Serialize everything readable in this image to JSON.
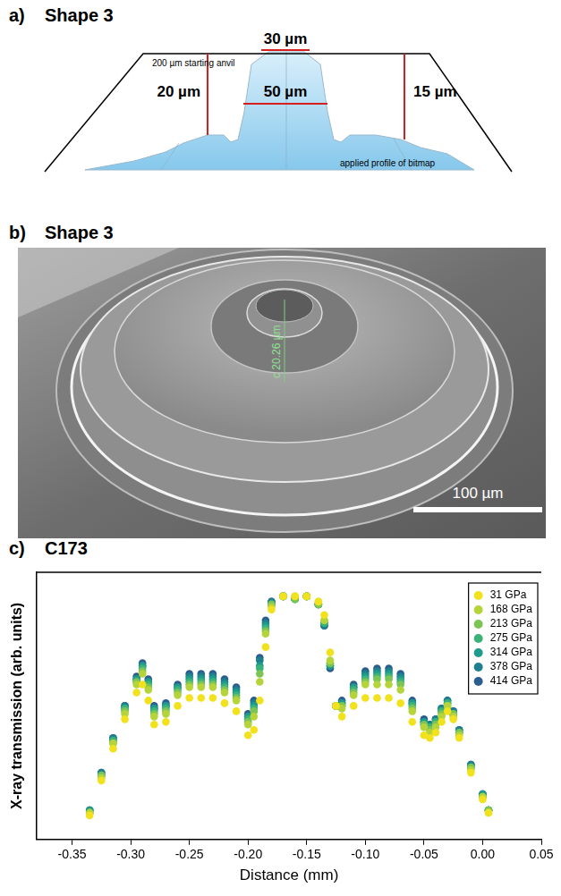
{
  "panel_a": {
    "letter": "a)",
    "title": "Shape 3",
    "labels": {
      "top_width": "30 µm",
      "pillar_width": "50 µm",
      "left_height": "20 µm",
      "right_height": "15 µm",
      "anvil": "200 µm starting anvil",
      "profile": "applied profile of bitmap"
    }
  },
  "panel_b": {
    "letter": "b)",
    "title": "Shape 3",
    "measurement": "c 20.26 µm",
    "scale_bar": "100 µm"
  },
  "panel_c": {
    "letter": "c)"
  },
  "chart_data": {
    "type": "scatter",
    "title": "C173",
    "x_label": "Distance (mm)",
    "y_label": "X-ray transmission (arb. units)",
    "x": [
      -0.335,
      -0.325,
      -0.315,
      -0.305,
      -0.295,
      -0.29,
      -0.285,
      -0.28,
      -0.27,
      -0.26,
      -0.25,
      -0.24,
      -0.23,
      -0.22,
      -0.21,
      -0.2,
      -0.195,
      -0.19,
      -0.185,
      -0.18,
      -0.17,
      -0.16,
      -0.15,
      -0.14,
      -0.135,
      -0.13,
      -0.125,
      -0.12,
      -0.11,
      -0.1,
      -0.09,
      -0.08,
      -0.07,
      -0.06,
      -0.05,
      -0.045,
      -0.04,
      -0.035,
      -0.03,
      -0.025,
      -0.02,
      -0.01,
      0.0,
      0.005
    ],
    "series": [
      {
        "name": "31 GPa",
        "color": "#f2e11d",
        "values": [
          0.09,
          0.22,
          0.34,
          0.45,
          0.55,
          0.58,
          0.52,
          0.43,
          0.44,
          0.5,
          0.53,
          0.53,
          0.53,
          0.51,
          0.48,
          0.39,
          0.41,
          0.52,
          0.72,
          0.86,
          0.91,
          0.91,
          0.91,
          0.89,
          0.84,
          0.7,
          0.5,
          0.46,
          0.5,
          0.53,
          0.53,
          0.53,
          0.51,
          0.44,
          0.39,
          0.38,
          0.4,
          0.44,
          0.48,
          0.45,
          0.38,
          0.25,
          0.15,
          0.1
        ]
      },
      {
        "name": "168 GPa",
        "color": "#b5d43b",
        "values": [
          0.1,
          0.23,
          0.36,
          0.47,
          0.58,
          0.62,
          0.56,
          0.46,
          0.47,
          0.54,
          0.57,
          0.57,
          0.57,
          0.55,
          0.52,
          0.43,
          0.46,
          0.59,
          0.77,
          0.87,
          0.91,
          0.91,
          0.91,
          0.89,
          0.82,
          0.67,
          0.5,
          0.49,
          0.54,
          0.58,
          0.58,
          0.58,
          0.56,
          0.48,
          0.42,
          0.4,
          0.42,
          0.46,
          0.5,
          0.46,
          0.39,
          0.26,
          0.16,
          0.1
        ]
      },
      {
        "name": "213 GPa",
        "color": "#7cc554",
        "values": [
          0.1,
          0.24,
          0.36,
          0.48,
          0.59,
          0.63,
          0.57,
          0.47,
          0.48,
          0.55,
          0.58,
          0.58,
          0.58,
          0.56,
          0.53,
          0.44,
          0.48,
          0.62,
          0.78,
          0.88,
          0.91,
          0.9,
          0.91,
          0.88,
          0.82,
          0.66,
          0.5,
          0.5,
          0.55,
          0.59,
          0.6,
          0.6,
          0.58,
          0.49,
          0.43,
          0.41,
          0.43,
          0.47,
          0.5,
          0.47,
          0.4,
          0.27,
          0.16,
          0.11
        ]
      },
      {
        "name": "275 GPa",
        "color": "#3bb27a",
        "values": [
          0.1,
          0.24,
          0.37,
          0.49,
          0.59,
          0.64,
          0.58,
          0.48,
          0.49,
          0.56,
          0.59,
          0.59,
          0.59,
          0.57,
          0.54,
          0.45,
          0.49,
          0.64,
          0.79,
          0.88,
          0.91,
          0.9,
          0.91,
          0.88,
          0.81,
          0.66,
          0.5,
          0.5,
          0.56,
          0.6,
          0.61,
          0.61,
          0.59,
          0.5,
          0.43,
          0.42,
          0.44,
          0.48,
          0.51,
          0.47,
          0.4,
          0.27,
          0.16,
          0.11
        ]
      },
      {
        "name": "314 GPa",
        "color": "#1f9b8c",
        "values": [
          0.11,
          0.24,
          0.37,
          0.49,
          0.6,
          0.65,
          0.59,
          0.49,
          0.5,
          0.57,
          0.6,
          0.6,
          0.6,
          0.58,
          0.55,
          0.46,
          0.5,
          0.65,
          0.8,
          0.88,
          0.91,
          0.9,
          0.91,
          0.88,
          0.81,
          0.65,
          0.5,
          0.51,
          0.57,
          0.61,
          0.62,
          0.62,
          0.6,
          0.51,
          0.44,
          0.42,
          0.44,
          0.48,
          0.51,
          0.47,
          0.4,
          0.27,
          0.17,
          0.11
        ]
      },
      {
        "name": "378 GPa",
        "color": "#1e7f8d",
        "values": [
          0.11,
          0.25,
          0.38,
          0.5,
          0.6,
          0.65,
          0.59,
          0.49,
          0.5,
          0.57,
          0.61,
          0.61,
          0.61,
          0.59,
          0.56,
          0.46,
          0.51,
          0.67,
          0.81,
          0.89,
          0.91,
          0.9,
          0.91,
          0.88,
          0.8,
          0.65,
          0.5,
          0.51,
          0.57,
          0.62,
          0.63,
          0.63,
          0.61,
          0.51,
          0.44,
          0.43,
          0.45,
          0.49,
          0.52,
          0.48,
          0.41,
          0.28,
          0.17,
          0.11
        ]
      },
      {
        "name": "414 GPa",
        "color": "#2b5d8d",
        "values": [
          0.11,
          0.25,
          0.38,
          0.5,
          0.61,
          0.66,
          0.6,
          0.5,
          0.51,
          0.58,
          0.62,
          0.62,
          0.62,
          0.6,
          0.57,
          0.47,
          0.52,
          0.68,
          0.82,
          0.89,
          0.91,
          0.9,
          0.91,
          0.88,
          0.8,
          0.64,
          0.5,
          0.52,
          0.58,
          0.63,
          0.64,
          0.64,
          0.62,
          0.52,
          0.45,
          0.43,
          0.45,
          0.49,
          0.52,
          0.48,
          0.41,
          0.28,
          0.17,
          0.11
        ]
      }
    ],
    "xlim": [
      -0.38,
      0.05
    ],
    "xticks": [
      -0.35,
      {
        "value": -0.3,
        "label": "-0.30"
      },
      -0.25,
      {
        "value": -0.2,
        "label": "-0.20"
      },
      -0.15,
      {
        "value": -0.1,
        "label": "-0.10"
      },
      -0.05,
      {
        "value": 0,
        "label": "0.00"
      },
      0.05
    ],
    "ylim": [
      0,
      1
    ],
    "yticks": [],
    "grid": false,
    "legend": "upper right",
    "tick_labels": "x",
    "marker": "circle"
  }
}
